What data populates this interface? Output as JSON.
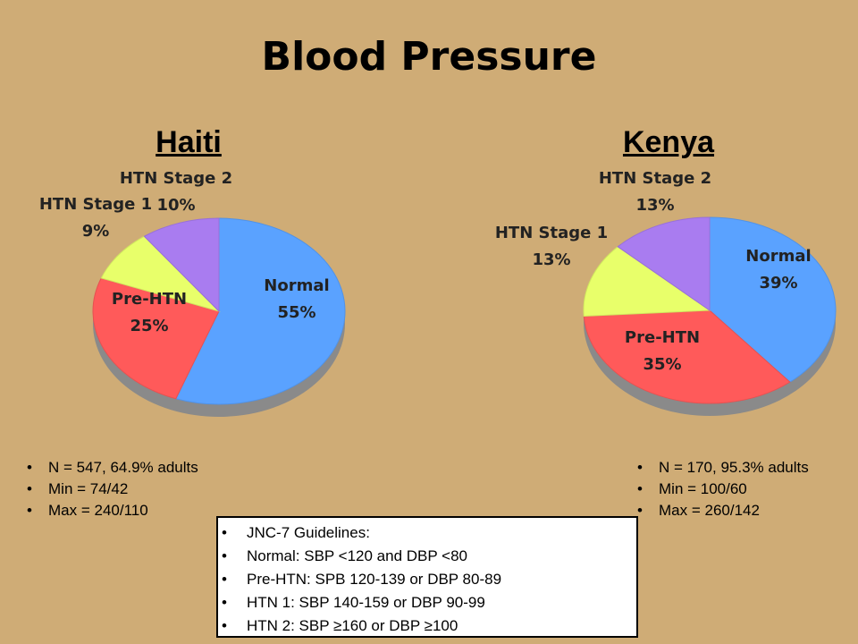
{
  "title": "Blood Pressure",
  "colors": {
    "normal": "#5aa2ff",
    "pre_htn": "#ff5a5a",
    "htn1": "#e8ff6a",
    "htn2": "#a97cf0",
    "background": "#cfac76"
  },
  "chart_data": [
    {
      "type": "pie",
      "title": "Haiti",
      "slices": [
        {
          "label": "Normal",
          "value": 55,
          "value_label": "55%"
        },
        {
          "label": "Pre-HTN",
          "value": 25,
          "value_label": "25%"
        },
        {
          "label": "HTN Stage 1",
          "value": 9,
          "value_label": "9%"
        },
        {
          "label": "HTN Stage 2",
          "value": 10,
          "value_label": "10%"
        }
      ],
      "stats": [
        "N = 547, 64.9% adults",
        "Min = 74/42",
        "Max = 240/110"
      ]
    },
    {
      "type": "pie",
      "title": "Kenya",
      "slices": [
        {
          "label": "Normal",
          "value": 39,
          "value_label": "39%"
        },
        {
          "label": "Pre-HTN",
          "value": 35,
          "value_label": "35%"
        },
        {
          "label": "HTN Stage 1",
          "value": 13,
          "value_label": "13%"
        },
        {
          "label": "HTN Stage 2",
          "value": 13,
          "value_label": "13%"
        }
      ],
      "stats": [
        "N = 170, 95.3% adults",
        "Min = 100/60",
        "Max = 260/142"
      ]
    }
  ],
  "guidelines": [
    "JNC-7 Guidelines:",
    "Normal: SBP <120 and DBP <80",
    "Pre-HTN: SPB 120-139 or DBP 80-89",
    "HTN 1: SBP 140-159 or DBP 90-99",
    "HTN 2: SBP ≥160 or DBP ≥100"
  ]
}
